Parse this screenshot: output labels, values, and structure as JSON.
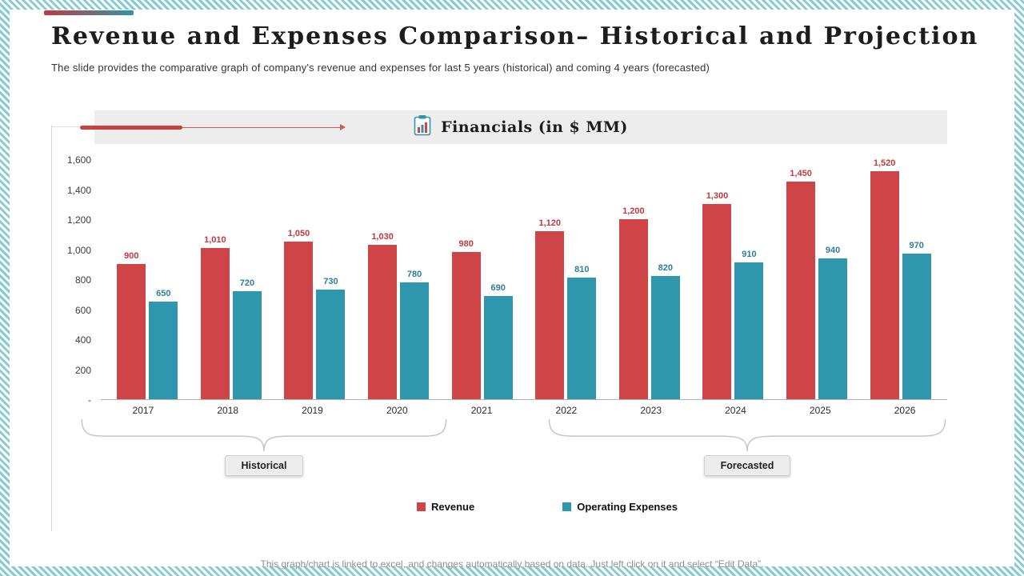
{
  "slide": {
    "title": "Revenue and Expenses Comparison– Historical and Projection",
    "subtitle": "The slide provides the comparative graph of company's revenue and expenses for last 5 years (historical) and coming 4 years (forecasted)",
    "footer": "This graph/chart is linked to excel, and changes automatically based on data. Just left click on it and select “Edit Data”."
  },
  "chart_header": {
    "title": "Financials (in $ MM)",
    "icon": "clipboard-chart-icon"
  },
  "chart_data": {
    "type": "bar",
    "title": "Financials (in $ MM)",
    "categories": [
      "2017",
      "2018",
      "2019",
      "2020",
      "2021",
      "2022",
      "2023",
      "2024",
      "2025",
      "2026"
    ],
    "series": [
      {
        "name": "Revenue",
        "color": "#cf4547",
        "label_color": "#bf3b41",
        "values": [
          900,
          1010,
          1050,
          1030,
          980,
          1120,
          1200,
          1300,
          1450,
          1520
        ]
      },
      {
        "name": "Operating Expenses",
        "color": "#2e96ad",
        "label_color": "#2d7f98",
        "values": [
          650,
          720,
          730,
          780,
          690,
          810,
          820,
          910,
          940,
          970
        ]
      }
    ],
    "ylim": [
      0,
      1600
    ],
    "ytick_step": 200,
    "yticks": [
      "1,600",
      "1,400",
      "1,200",
      "1,000",
      "800",
      "600",
      "400",
      "200",
      "-"
    ],
    "grid": false,
    "legend_position": "bottom",
    "group_labels": [
      {
        "label": "Historical",
        "categories": [
          "2017",
          "2018",
          "2019",
          "2020",
          "2021"
        ]
      },
      {
        "label": "Forecasted",
        "categories": [
          "2022",
          "2023",
          "2024",
          "2025",
          "2026"
        ]
      }
    ]
  },
  "groups": {
    "historical": "Historical",
    "forecasted": "Forecasted"
  },
  "legend": [
    {
      "label": "Revenue",
      "color": "#cf4547"
    },
    {
      "label": "Operating Expenses",
      "color": "#2e96ad"
    }
  ]
}
